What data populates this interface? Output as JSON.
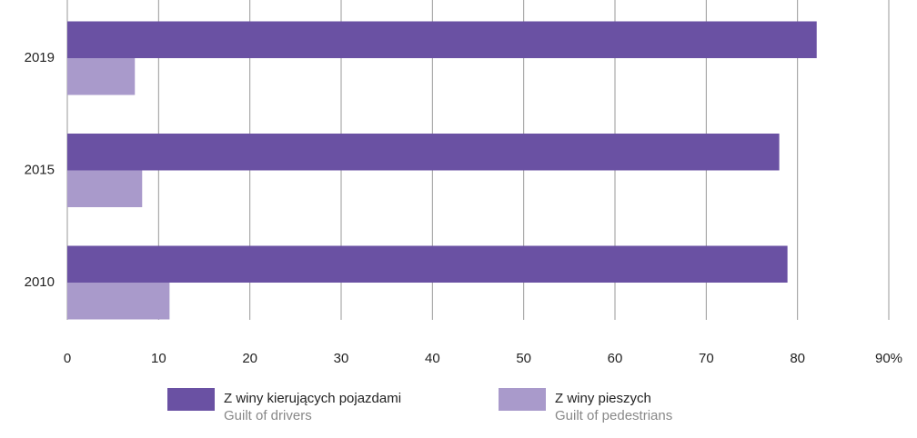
{
  "chart_data": {
    "type": "hbar",
    "categories": [
      "2019",
      "2015",
      "2010"
    ],
    "series": [
      {
        "name": "Z winy kierujących pojazdami",
        "subtitle": "Guilt of drivers",
        "color": "#6a51a3",
        "values": [
          82.1,
          78.0,
          78.9
        ]
      },
      {
        "name": "Z winy pieszych",
        "subtitle": "Guilt of pedestrians",
        "color": "#a99acb",
        "values": [
          7.4,
          8.2,
          11.2
        ]
      }
    ],
    "xlim": [
      0,
      90
    ],
    "xticks": [
      0,
      10,
      20,
      30,
      40,
      50,
      60,
      70,
      80,
      {
        "value": 90,
        "label": "90%"
      }
    ],
    "grid": true
  }
}
